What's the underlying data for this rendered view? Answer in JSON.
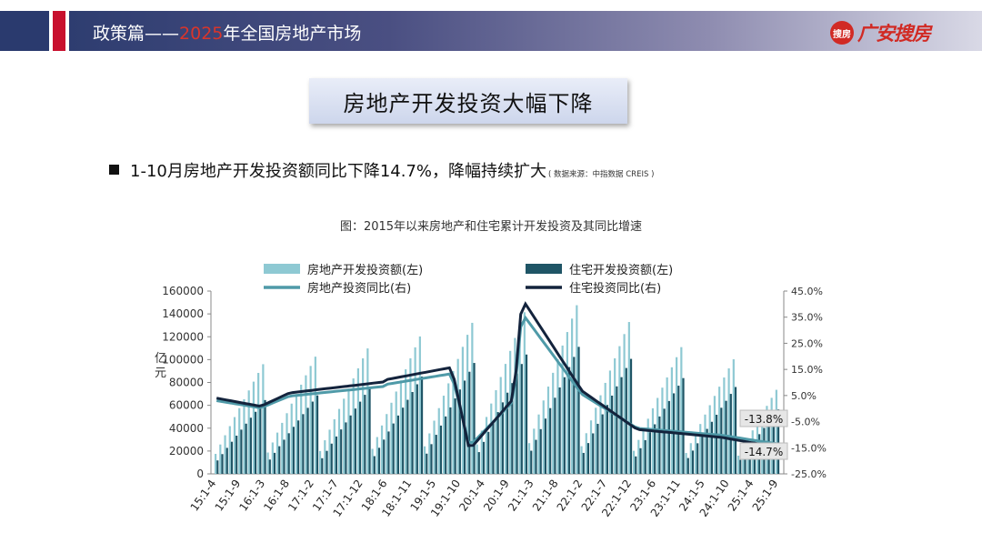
{
  "header": {
    "title_prefix": "政策篇——",
    "title_year": "2025",
    "title_suffix": "年全国房地产市场",
    "logo_mark": "搜房",
    "logo_text": "广安搜房",
    "accent": "#c8102e"
  },
  "banner": {
    "title": "房地产开发投资大幅下降"
  },
  "bullet": {
    "text": "1-10月房地产开发投资额同比下降14.7%，降幅持续扩大",
    "source": "( 数据来源：中指数据 CREIS )"
  },
  "chart_title": "图：2015年以来房地产和住宅累计开发投资及其同比增速",
  "chart_data": {
    "type": "bar",
    "ylabel": "亿元",
    "ylim": [
      0,
      160000
    ],
    "y2lim": [
      -25,
      45
    ],
    "yticks": [
      "0",
      "20000",
      "40000",
      "60000",
      "80000",
      "100000",
      "120000",
      "140000",
      "160000"
    ],
    "y2ticks": [
      "-25.0%",
      "-15.0%",
      "-5.0%",
      "5.0%",
      "15.0%",
      "25.0%",
      "35.0%",
      "45.0%"
    ],
    "legend": [
      {
        "name": "房地产开发投资额(左)",
        "color": "#8ec9d3",
        "kind": "bar"
      },
      {
        "name": "住宅开发投资额(左)",
        "color": "#1f5566",
        "kind": "bar"
      },
      {
        "name": "房地产投资同比(右)",
        "color": "#4f9aa8",
        "kind": "line"
      },
      {
        "name": "住宅投资同比(右)",
        "color": "#13233c",
        "kind": "line"
      }
    ],
    "xticks": [
      "15:1-4",
      "15:1-9",
      "16:1-3",
      "16:1-8",
      "17:1-2",
      "17:1-7",
      "17:1-12",
      "18:1-6",
      "18:1-11",
      "19:1-5",
      "19:1-10",
      "20:1-4",
      "20:1-9",
      "21:1-3",
      "21:1-8",
      "22:1-2",
      "22:1-7",
      "22:1-12",
      "23:1-6",
      "23:1-11",
      "24:1-5",
      "24:1-10",
      "25:1-4",
      "25:1-9"
    ],
    "annual_totals": {
      "2015": [
        95979,
        64595
      ],
      "2016": [
        102581,
        68704
      ],
      "2017": [
        109799,
        75148
      ],
      "2018": [
        120264,
        85192
      ],
      "2019": [
        132194,
        97071
      ],
      "2020": [
        141443,
        104446
      ],
      "2021": [
        147602,
        111173
      ],
      "2022": [
        132895,
        100646
      ],
      "2023": [
        110913,
        83820
      ],
      "2024": [
        100280,
        76040
      ],
      "2025": [
        73563,
        56450
      ]
    },
    "annotations": [
      "-13.8%",
      "-14.7%"
    ]
  }
}
